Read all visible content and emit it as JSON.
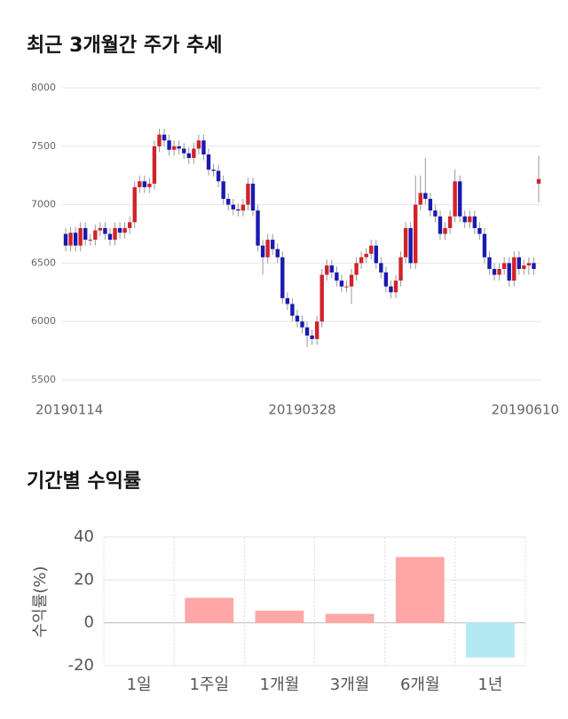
{
  "chart_data": [
    {
      "type": "candlestick",
      "title": "최근 3개월간 주가 추세",
      "categories": [
        "20190114",
        null,
        null,
        null,
        null,
        null,
        null,
        null,
        null,
        null,
        null,
        null,
        null,
        null,
        null,
        null,
        null,
        null,
        null,
        null,
        null,
        null,
        null,
        null,
        null,
        null,
        null,
        null,
        null,
        null,
        null,
        null,
        null,
        null,
        null,
        null,
        null,
        null,
        null,
        null,
        null,
        null,
        null,
        null,
        null,
        null,
        null,
        null,
        "20190328",
        null,
        null,
        null,
        null,
        null,
        null,
        null,
        null,
        null,
        null,
        null,
        null,
        null,
        null,
        null,
        null,
        null,
        null,
        null,
        null,
        null,
        null,
        null,
        null,
        null,
        null,
        null,
        null,
        null,
        null,
        null,
        null,
        null,
        null,
        null,
        null,
        null,
        null,
        null,
        null,
        null,
        null,
        null,
        null,
        null,
        null,
        null,
        "20190610"
      ],
      "open": [
        6750,
        6650,
        6760,
        6650,
        6800,
        6700,
        6700,
        6780,
        6800,
        6750,
        6700,
        6800,
        6760,
        6800,
        6850,
        7150,
        7200,
        7150,
        7180,
        7500,
        7600,
        7550,
        7470,
        7500,
        7480,
        7440,
        7400,
        7480,
        7550,
        7430,
        7300,
        7290,
        7200,
        7050,
        7000,
        6960,
        6950,
        7000,
        7180,
        6950,
        6650,
        6550,
        6700,
        6620,
        6550,
        6200,
        6150,
        6050,
        6000,
        5950,
        5880,
        5850,
        6000,
        6400,
        6480,
        6420,
        6350,
        6300,
        6300,
        6400,
        6500,
        6550,
        6580,
        6650,
        6500,
        6420,
        6300,
        6250,
        6350,
        6550,
        6800,
        6500,
        7000,
        7100,
        7050,
        6950,
        6900,
        6750,
        6800,
        6900,
        7200,
        6900,
        6850,
        6900,
        6800,
        6750,
        6550,
        6450,
        6400,
        6450,
        6500,
        6350,
        6550,
        6450,
        6480,
        6500,
        7180
      ],
      "high": [
        6800,
        6810,
        6810,
        6850,
        6850,
        6750,
        6830,
        6850,
        6850,
        6800,
        6850,
        6850,
        6850,
        6900,
        7200,
        7250,
        7250,
        7230,
        7550,
        7650,
        7650,
        7600,
        7550,
        7550,
        7530,
        7490,
        7530,
        7600,
        7600,
        7480,
        7350,
        7340,
        7250,
        7100,
        7050,
        7010,
        7050,
        7230,
        7230,
        7000,
        6700,
        6750,
        6750,
        6670,
        6600,
        6250,
        6200,
        6100,
        6050,
        6000,
        5930,
        6050,
        6450,
        6530,
        6530,
        6470,
        6400,
        6350,
        6450,
        6550,
        6600,
        6630,
        6700,
        6700,
        6550,
        6470,
        6350,
        6400,
        6600,
        6850,
        6850,
        7250,
        7250,
        7400,
        7100,
        7000,
        6950,
        6850,
        6950,
        7300,
        7250,
        6950,
        6950,
        6950,
        6850,
        6800,
        6600,
        6500,
        6500,
        6550,
        6550,
        6600,
        6600,
        6530,
        6550,
        6550,
        7420
      ],
      "low": [
        6600,
        6600,
        6600,
        6600,
        6650,
        6650,
        6650,
        6730,
        6700,
        6650,
        6650,
        6710,
        6710,
        6750,
        6800,
        7100,
        7100,
        7100,
        7130,
        7450,
        7500,
        7420,
        7420,
        7430,
        7390,
        7350,
        7350,
        7430,
        7380,
        7250,
        7240,
        7150,
        7000,
        6950,
        6910,
        6900,
        6900,
        6950,
        6900,
        6600,
        6400,
        6500,
        6570,
        6500,
        6150,
        6100,
        6000,
        5950,
        5900,
        5780,
        5800,
        5800,
        5950,
        6350,
        6370,
        6300,
        6250,
        6250,
        6150,
        6350,
        6450,
        6500,
        6530,
        6450,
        6370,
        6250,
        6200,
        6200,
        6300,
        6500,
        6450,
        6450,
        6950,
        7000,
        6900,
        6850,
        6700,
        6700,
        6750,
        6850,
        6850,
        6800,
        6800,
        6750,
        6700,
        6500,
        6400,
        6350,
        6350,
        6400,
        6300,
        6300,
        6400,
        6400,
        6400,
        6400,
        7020
      ],
      "close": [
        6650,
        6760,
        6650,
        6800,
        6700,
        6700,
        6780,
        6800,
        6750,
        6700,
        6800,
        6760,
        6800,
        6850,
        7150,
        7200,
        7150,
        7180,
        7500,
        7600,
        7550,
        7470,
        7500,
        7480,
        7440,
        7400,
        7480,
        7550,
        7430,
        7300,
        7290,
        7200,
        7050,
        7000,
        6960,
        6950,
        7000,
        7180,
        6950,
        6650,
        6550,
        6700,
        6620,
        6550,
        6200,
        6150,
        6050,
        6000,
        5950,
        5880,
        5850,
        6000,
        6400,
        6480,
        6420,
        6350,
        6300,
        6300,
        6400,
        6500,
        6550,
        6580,
        6650,
        6500,
        6420,
        6300,
        6250,
        6350,
        6550,
        6800,
        6500,
        7000,
        7100,
        7050,
        6950,
        6900,
        6750,
        6800,
        6900,
        7200,
        6900,
        6850,
        6900,
        6800,
        6750,
        6550,
        6450,
        6400,
        6450,
        6500,
        6350,
        6550,
        6450,
        6480,
        6500,
        6450,
        7220
      ],
      "up_color": "#d0232b",
      "down_color": "#1a1ab0",
      "ylim": [
        5500,
        8000
      ],
      "yticks": [
        5500,
        6000,
        6500,
        7000,
        7500,
        8000
      ],
      "grid": true
    },
    {
      "type": "bar",
      "title": "기간별 수익률",
      "ylabel": "수익률(%)",
      "categories": [
        "1일",
        "1주일",
        "1개월",
        "3개월",
        "6개월",
        "1년"
      ],
      "values": [
        0,
        11.5,
        5.5,
        4,
        30.5,
        -16
      ],
      "positive_color": "#ffa6a6",
      "negative_color": "#b3e9f3",
      "ylim": [
        -20,
        40
      ],
      "yticks": [
        -20,
        0,
        20,
        40
      ],
      "grid": true
    }
  ]
}
